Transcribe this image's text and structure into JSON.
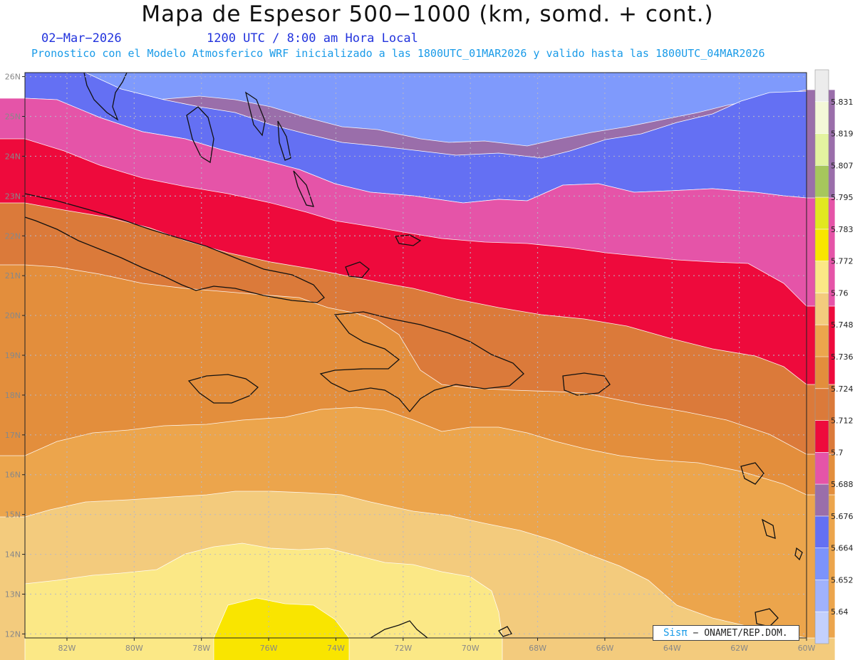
{
  "header": {
    "title": "Mapa de Espesor 500−1000 (km, somd. + cont.)",
    "date": "02−Mar−2026",
    "time": "1200 UTC / 8:00 am Hora Local",
    "subtitle": "Pronostico con el Modelo Atmosferico WRF inicializado a las 1800UTC_01MAR2026 y valido hasta las  1800UTC_04MAR2026"
  },
  "credit": {
    "logo": "Sisπ",
    "text": "− ONAMET/REP.DOM."
  },
  "axes": {
    "lat_labels": [
      "26N",
      "25N",
      "24N",
      "23N",
      "22N",
      "21N",
      "20N",
      "19N",
      "18N",
      "17N",
      "16N",
      "15N",
      "14N",
      "13N",
      "12N"
    ],
    "lat_values": [
      26,
      25,
      24,
      23,
      22,
      21,
      20,
      19,
      18,
      17,
      16,
      15,
      14,
      13,
      12
    ],
    "lon_labels": [
      "82W",
      "80W",
      "78W",
      "76W",
      "74W",
      "72W",
      "70W",
      "68W",
      "66W",
      "64W",
      "62W",
      "60W"
    ],
    "lon_values": [
      -82,
      -80,
      -78,
      -76,
      -74,
      -72,
      -70,
      -68,
      -66,
      -64,
      -62,
      -60
    ],
    "lon_range": [
      -83.25,
      -60
    ],
    "lat_range": [
      11.9,
      26.1
    ]
  },
  "legend": {
    "levels": [
      "5.64",
      "5.652",
      "5.664",
      "5.676",
      "5.688",
      "5.7",
      "5.712",
      "5.724",
      "5.736",
      "5.748",
      "5.76",
      "5.772",
      "5.783",
      "5.795",
      "5.807",
      "5.819",
      "5.831"
    ],
    "colors": [
      "#c3d0fd",
      "#a0b2fd",
      "#7c93fb",
      "#6470f3",
      "#9a6eaa",
      "#e554a8",
      "#ee0a3c",
      "#db7a3a",
      "#e38e3c",
      "#eca54c",
      "#f3cb7d",
      "#fbe886",
      "#f9e500",
      "#e2e820",
      "#a6c75c",
      "#e3f3a0",
      "#f4f8d8",
      "#ececec"
    ]
  },
  "bands": [
    {
      "level": "5.676",
      "color": "#9a6eaa"
    },
    {
      "level": "5.688",
      "color": "#e554a8"
    },
    {
      "level": "5.7",
      "color": "#ee0a3c"
    },
    {
      "level": "5.712",
      "color": "#db7a3a"
    },
    {
      "level": "5.724",
      "color": "#e38e3c"
    },
    {
      "level": "5.736",
      "color": "#eca54c"
    },
    {
      "level": "5.748",
      "color": "#f3cb7d"
    },
    {
      "level": "5.76",
      "color": "#fbe886"
    },
    {
      "level": "5.772",
      "color": "#f9e500"
    }
  ],
  "background_color": "#7f9afc",
  "band_top_color": "#6470f3"
}
